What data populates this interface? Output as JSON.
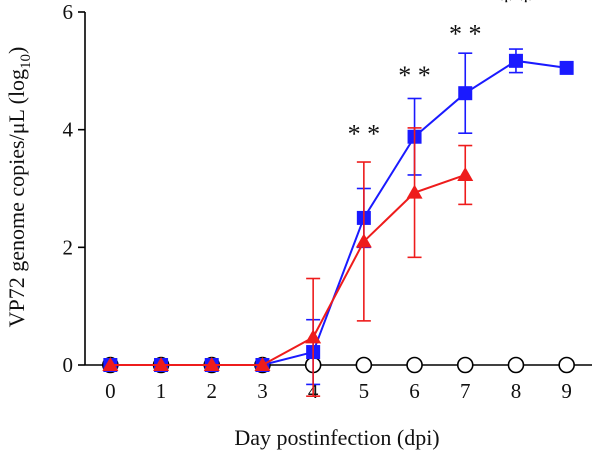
{
  "chart_data": {
    "type": "line",
    "title": "",
    "xlabel": "Day postinfection (dpi)",
    "ylabel_main": "VP72 genome copies/μL (log",
    "ylabel_sub": "10",
    "ylabel_close": ")",
    "xlim": [
      -0.5,
      9.5
    ],
    "ylim": [
      0,
      6
    ],
    "x_ticks": [
      0,
      1,
      2,
      3,
      4,
      5,
      6,
      7,
      8,
      9
    ],
    "y_ticks": [
      0,
      2,
      4,
      6
    ],
    "grid": false,
    "series": [
      {
        "marker": "square",
        "color": "#1a1aff",
        "x": [
          0,
          1,
          2,
          3,
          4,
          5,
          6,
          7,
          8,
          9
        ],
        "y": [
          0,
          0,
          0,
          0,
          0.22,
          2.5,
          3.88,
          4.62,
          5.17,
          5.05
        ],
        "err": [
          0,
          0,
          0,
          0,
          0.55,
          0.5,
          0.65,
          0.68,
          0.2,
          0
        ]
      },
      {
        "marker": "triangle",
        "color": "#ee1c1c",
        "x": [
          0,
          1,
          2,
          3,
          4,
          5,
          6,
          7
        ],
        "y": [
          0,
          0,
          0,
          0,
          0.47,
          2.1,
          2.93,
          3.23
        ],
        "err": [
          0,
          0,
          0,
          0,
          1.0,
          1.35,
          1.1,
          0.5
        ]
      },
      {
        "marker": "circle-open",
        "color": "#000000",
        "x": [
          0,
          1,
          2,
          3,
          4,
          5,
          6,
          7,
          8,
          9
        ],
        "y": [
          0,
          0,
          0,
          0,
          0,
          0,
          0,
          0,
          0,
          0
        ]
      }
    ],
    "annotations": [
      {
        "x": 5,
        "y": 3.95,
        "text": "* *"
      },
      {
        "x": 6,
        "y": 4.95,
        "text": "* *"
      },
      {
        "x": 7,
        "y": 5.65,
        "text": "* *"
      },
      {
        "x": 8,
        "y": 6.2,
        "text": "* *"
      }
    ]
  }
}
